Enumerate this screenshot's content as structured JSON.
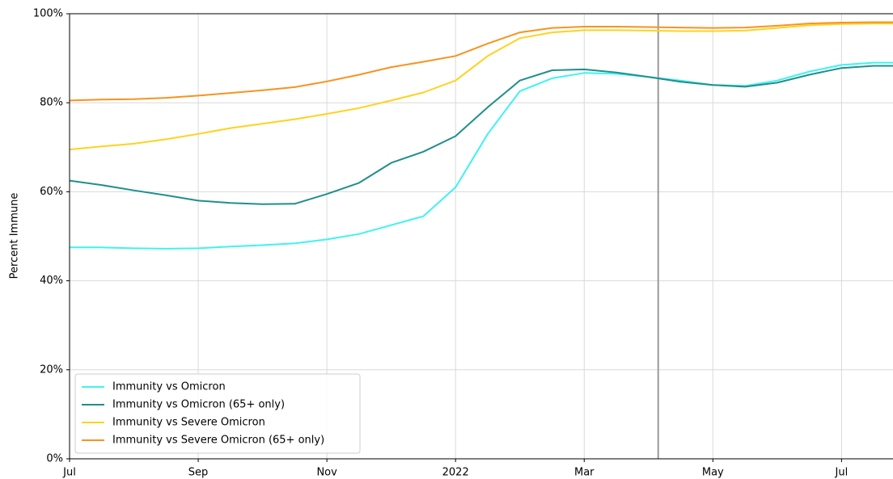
{
  "chart_data": {
    "type": "line",
    "y_label": "Percent Immune",
    "x": [
      0,
      0.5,
      1,
      1.5,
      2,
      2.5,
      3,
      3.5,
      4,
      4.5,
      5,
      5.5,
      6,
      6.5,
      7,
      7.5,
      8,
      8.5,
      9,
      9.5,
      10,
      10.5,
      11,
      11.5,
      12,
      12.5,
      12.8
    ],
    "series": [
      {
        "name": "Immunity vs Omicron",
        "color": "#3ff2f2",
        "values": [
          47.5,
          47.5,
          47.3,
          47.2,
          47.3,
          47.7,
          48,
          48.4,
          49.3,
          50.5,
          52.5,
          54.5,
          61,
          73,
          82.6,
          85.5,
          86.7,
          86.5,
          85.8,
          85,
          84,
          83.8,
          85,
          87,
          88.5,
          89,
          89
        ]
      },
      {
        "name": "Immunity vs Omicron (65+ only)",
        "color": "#1f8f8c",
        "values": [
          62.5,
          61.5,
          60.3,
          59.2,
          58,
          57.5,
          57.2,
          57.3,
          59.5,
          62,
          66.5,
          69,
          72.5,
          79,
          85,
          87.3,
          87.5,
          86.8,
          85.8,
          84.7,
          84,
          83.6,
          84.5,
          86.3,
          87.8,
          88.3,
          88.3
        ]
      },
      {
        "name": "Immunity vs Severe Omicron",
        "color": "#ffd21f",
        "values": [
          69.5,
          70.2,
          70.8,
          71.8,
          73,
          74.3,
          75.3,
          76.3,
          77.5,
          78.8,
          80.5,
          82.3,
          85,
          90.5,
          94.5,
          95.8,
          96.3,
          96.3,
          96.2,
          96.1,
          96.1,
          96.2,
          96.8,
          97.4,
          97.7,
          97.8,
          97.8
        ]
      },
      {
        "name": "Immunity vs Severe Omicron (65+ only)",
        "color": "#f7931e",
        "values": [
          80.5,
          80.7,
          80.8,
          81.1,
          81.6,
          82.2,
          82.8,
          83.5,
          84.8,
          86.3,
          88,
          89.2,
          90.5,
          93.3,
          95.8,
          96.8,
          97.1,
          97.1,
          97,
          96.9,
          96.8,
          96.9,
          97.3,
          97.8,
          98,
          98.1,
          98.1
        ]
      }
    ],
    "xlim": [
      0,
      12.8
    ],
    "xticks": [
      {
        "value": 0,
        "label": "Jul"
      },
      {
        "value": 2,
        "label": "Sep"
      },
      {
        "value": 4,
        "label": "Nov"
      },
      {
        "value": 6,
        "label": "2022"
      },
      {
        "value": 8,
        "label": "Mar"
      },
      {
        "value": 10,
        "label": "May"
      },
      {
        "value": 12,
        "label": "Jul"
      }
    ],
    "ylim": [
      0,
      100
    ],
    "yticks": [
      {
        "value": 0,
        "label": "0%"
      },
      {
        "value": 20,
        "label": "20%"
      },
      {
        "value": 40,
        "label": "40%"
      },
      {
        "value": 60,
        "label": "60%"
      },
      {
        "value": 80,
        "label": "80%"
      },
      {
        "value": 100,
        "label": "100%"
      }
    ],
    "vline": 9.15,
    "grid": true,
    "legend": "lower left"
  }
}
